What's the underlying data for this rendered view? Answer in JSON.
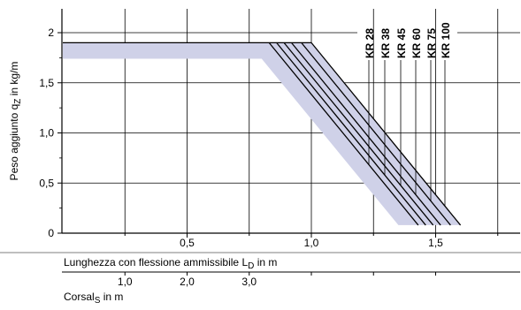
{
  "chart_data": {
    "type": "line",
    "title": "",
    "xlabel": "Lunghezza con flessione ammissibile L",
    "xlabel_sub": "D",
    "xlabel_unit": " in m",
    "x2label": "Corsal",
    "x2label_sub": "S",
    "x2label_unit": " in m",
    "ylabel": "Peso aggiunto q",
    "ylabel_sub": "Z",
    "ylabel_unit": " in kg/m",
    "xlim": [
      0,
      1.8
    ],
    "ylim": [
      0,
      2.2
    ],
    "x_ticks": [
      {
        "value": 0.9,
        "label": "0,5"
      },
      {
        "value": 1.8,
        "label": "1,0"
      },
      {
        "value": 2.7,
        "label": "1,5"
      }
    ],
    "x2_ticks": [
      {
        "value": 0.9,
        "label": "1,0"
      },
      {
        "value": 1.8,
        "label": "2,0"
      },
      {
        "value": 2.7,
        "label": "3,0"
      }
    ],
    "y_ticks": [
      {
        "value": 0,
        "label": "0"
      },
      {
        "value": 0.5,
        "label": "0,5"
      },
      {
        "value": 1.0,
        "label": "1,0"
      },
      {
        "value": 1.5,
        "label": "1,5"
      },
      {
        "value": 2.0,
        "label": "2"
      }
    ],
    "grid": true,
    "legend_position": "right, rotated labels",
    "colors": {
      "band": "#cfd1e8",
      "lines": "#000000",
      "grid": "#000000"
    },
    "band": {
      "name": "",
      "points": [
        [
          0,
          1.9
        ],
        [
          1.0,
          1.9
        ],
        [
          1.6,
          0.08
        ],
        [
          1.35,
          0.08
        ],
        [
          0.8,
          1.74
        ],
        [
          0,
          1.74
        ]
      ]
    },
    "series": [
      {
        "name": "KR 28",
        "values": [
          [
            0.83,
            1.9
          ],
          [
            1.43,
            0.08
          ]
        ]
      },
      {
        "name": "KR 38",
        "values": [
          [
            0.86,
            1.9
          ],
          [
            1.46,
            0.08
          ]
        ]
      },
      {
        "name": "KR 45",
        "values": [
          [
            0.89,
            1.9
          ],
          [
            1.49,
            0.08
          ]
        ]
      },
      {
        "name": "KR 60",
        "values": [
          [
            0.92,
            1.9
          ],
          [
            1.52,
            0.08
          ]
        ]
      },
      {
        "name": "KR 75",
        "values": [
          [
            0.96,
            1.9
          ],
          [
            1.56,
            0.08
          ]
        ]
      },
      {
        "name": "KR 100",
        "values": [
          [
            1.0,
            1.9
          ],
          [
            1.6,
            0.08
          ]
        ]
      }
    ]
  }
}
